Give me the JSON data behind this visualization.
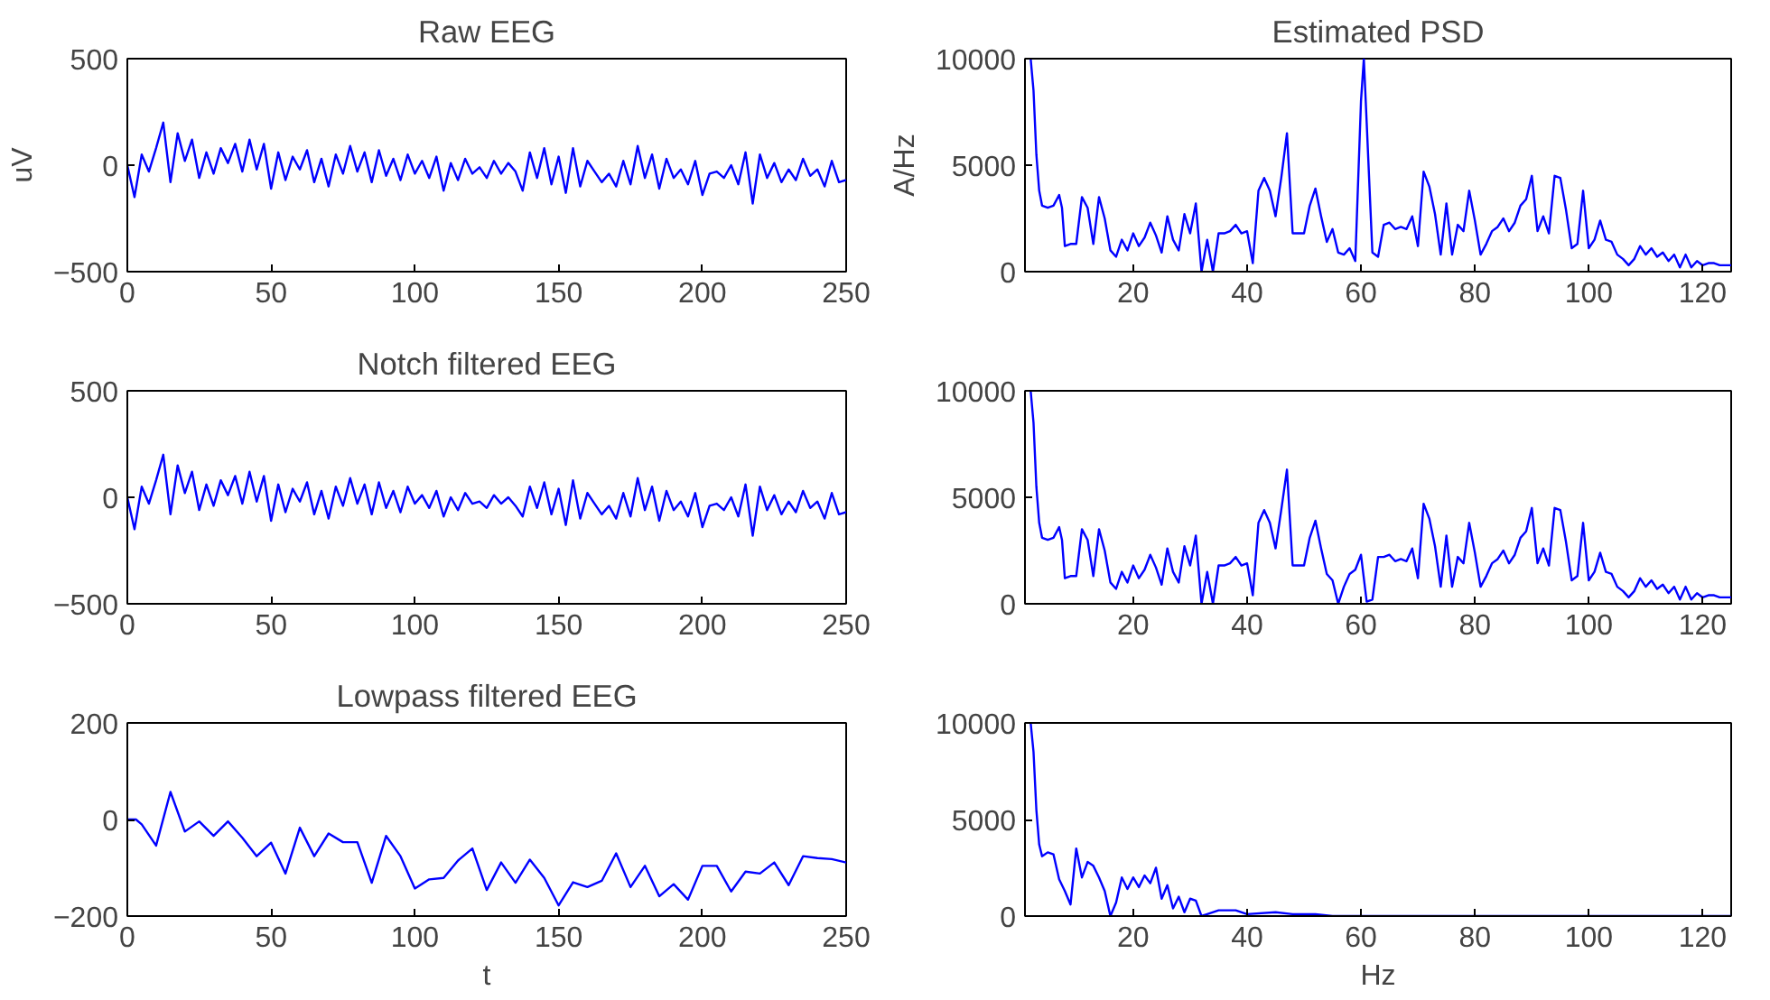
{
  "chart_data": [
    {
      "type": "line",
      "title": "Raw EEG",
      "ylabel": "uV",
      "xlim": [
        0,
        250
      ],
      "xticks": [
        0,
        50,
        100,
        150,
        200,
        250
      ],
      "ylim": [
        -500,
        500
      ],
      "yticks": [
        -500,
        0,
        500
      ],
      "grid": false,
      "series": [
        {
          "color": "#0000ff",
          "x": [
            0,
            2.5,
            5,
            7.5,
            10,
            12.5,
            15,
            17.5,
            20,
            22.5,
            25,
            27.5,
            30,
            32.5,
            35,
            37.5,
            40,
            42.5,
            45,
            47.5,
            50,
            52.5,
            55,
            57.5,
            60,
            62.5,
            65,
            67.5,
            70,
            72.5,
            75,
            77.5,
            80,
            82.5,
            85,
            87.5,
            90,
            92.5,
            95,
            97.5,
            100,
            102.5,
            105,
            107.5,
            110,
            112.5,
            115,
            117.5,
            120,
            122.5,
            125,
            127.5,
            130,
            132.5,
            135,
            137.5,
            140,
            142.5,
            145,
            147.5,
            150,
            152.5,
            155,
            157.5,
            160,
            162.5,
            165,
            167.5,
            170,
            172.5,
            175,
            177.5,
            180,
            182.5,
            185,
            187.5,
            190,
            192.5,
            195,
            197.5,
            200,
            202.5,
            205,
            207.5,
            210,
            212.5,
            215,
            217.5,
            220,
            222.5,
            225,
            227.5,
            230,
            232.5,
            235,
            237.5,
            240,
            242.5,
            245,
            247.5,
            250
          ],
          "values": [
            0,
            -150,
            50,
            -30,
            80,
            200,
            -80,
            150,
            20,
            120,
            -60,
            60,
            -40,
            80,
            10,
            100,
            -30,
            120,
            -20,
            100,
            -110,
            60,
            -70,
            40,
            -20,
            70,
            -80,
            30,
            -100,
            50,
            -40,
            90,
            -30,
            60,
            -80,
            70,
            -50,
            30,
            -70,
            50,
            -40,
            20,
            -60,
            40,
            -120,
            10,
            -70,
            30,
            -40,
            -10,
            -60,
            20,
            -40,
            10,
            -30,
            -120,
            60,
            -60,
            80,
            -90,
            40,
            -130,
            80,
            -100,
            20,
            -30,
            -80,
            -40,
            -100,
            20,
            -90,
            90,
            -60,
            50,
            -110,
            30,
            -60,
            -20,
            -90,
            20,
            -140,
            -40,
            -30,
            -60,
            0,
            -90,
            60,
            -180,
            50,
            -60,
            10,
            -80,
            -20,
            -70,
            30,
            -50,
            -20,
            -100,
            20,
            -80,
            -70
          ]
        }
      ]
    },
    {
      "type": "line",
      "title": "Estimated PSD",
      "ylabel": "A/Hz",
      "xlim": [
        1,
        125
      ],
      "xticks": [
        20,
        40,
        60,
        80,
        100,
        120
      ],
      "ylim": [
        0,
        10000
      ],
      "yticks": [
        0,
        5000,
        10000
      ],
      "grid": false,
      "series": [
        {
          "color": "#0000ff",
          "x": [
            2,
            2.5,
            3,
            3.5,
            4,
            5,
            6,
            7,
            7.5,
            8,
            9,
            10,
            11,
            12,
            13,
            14,
            15,
            16,
            17,
            18,
            19,
            20,
            21,
            22,
            23,
            24,
            25,
            26,
            27,
            28,
            29,
            30,
            31,
            32,
            33,
            34,
            35,
            36,
            37,
            38,
            39,
            40,
            41,
            42,
            43,
            44,
            45,
            46,
            47,
            48,
            49,
            50,
            51,
            52,
            53,
            54,
            55,
            56,
            57,
            58,
            59,
            60,
            60.5,
            61,
            62,
            63,
            64,
            65,
            66,
            67,
            68,
            69,
            70,
            71,
            72,
            73,
            74,
            75,
            76,
            77,
            78,
            79,
            80,
            81,
            82,
            83,
            84,
            85,
            86,
            87,
            88,
            89,
            90,
            91,
            92,
            93,
            94,
            95,
            96,
            97,
            98,
            99,
            100,
            101,
            102,
            103,
            104,
            105,
            106,
            107,
            108,
            109,
            110,
            111,
            112,
            113,
            114,
            115,
            116,
            117,
            118,
            119,
            120,
            121,
            122,
            123,
            125
          ],
          "values": [
            10000,
            8500,
            5500,
            3800,
            3100,
            3000,
            3100,
            3600,
            3000,
            1200,
            1300,
            1300,
            3500,
            3000,
            1300,
            3500,
            2500,
            1000,
            700,
            1500,
            1000,
            1800,
            1200,
            1600,
            2300,
            1700,
            900,
            2600,
            1500,
            1000,
            2700,
            1800,
            3200,
            0,
            1500,
            0,
            1800,
            1800,
            1900,
            2200,
            1800,
            1900,
            400,
            3800,
            4400,
            3800,
            2600,
            4400,
            6500,
            1800,
            1800,
            1800,
            3100,
            3900,
            2600,
            1400,
            2000,
            900,
            800,
            1100,
            500,
            8000,
            10000,
            7000,
            900,
            700,
            2200,
            2300,
            2000,
            2100,
            2000,
            2600,
            1200,
            4700,
            4000,
            2700,
            800,
            3200,
            800,
            2200,
            1900,
            3800,
            2400,
            800,
            1300,
            1900,
            2100,
            2500,
            1900,
            2300,
            3100,
            3400,
            4500,
            1900,
            2600,
            1800,
            4500,
            4400,
            2900,
            1100,
            1300,
            3800,
            1100,
            1500,
            2400,
            1500,
            1400,
            800,
            600,
            300,
            600,
            1200,
            800,
            1100,
            700,
            900,
            500,
            800,
            200,
            800,
            200,
            500,
            300,
            400,
            400,
            300,
            300
          ]
        }
      ]
    },
    {
      "type": "line",
      "title": "Notch filtered EEG",
      "xlim": [
        0,
        250
      ],
      "xticks": [
        0,
        50,
        100,
        150,
        200,
        250
      ],
      "ylim": [
        -500,
        500
      ],
      "yticks": [
        -500,
        0,
        500
      ],
      "grid": false,
      "series": [
        {
          "color": "#0000ff",
          "x": [
            0,
            2.5,
            5,
            7.5,
            10,
            12.5,
            15,
            17.5,
            20,
            22.5,
            25,
            27.5,
            30,
            32.5,
            35,
            37.5,
            40,
            42.5,
            45,
            47.5,
            50,
            52.5,
            55,
            57.5,
            60,
            62.5,
            65,
            67.5,
            70,
            72.5,
            75,
            77.5,
            80,
            82.5,
            85,
            87.5,
            90,
            92.5,
            95,
            97.5,
            100,
            102.5,
            105,
            107.5,
            110,
            112.5,
            115,
            117.5,
            120,
            122.5,
            125,
            127.5,
            130,
            132.5,
            135,
            137.5,
            140,
            142.5,
            145,
            147.5,
            150,
            152.5,
            155,
            157.5,
            160,
            162.5,
            165,
            167.5,
            170,
            172.5,
            175,
            177.5,
            180,
            182.5,
            185,
            187.5,
            190,
            192.5,
            195,
            197.5,
            200,
            202.5,
            205,
            207.5,
            210,
            212.5,
            215,
            217.5,
            220,
            222.5,
            225,
            227.5,
            230,
            232.5,
            235,
            237.5,
            240,
            242.5,
            245,
            247.5,
            250
          ],
          "values": [
            0,
            -150,
            50,
            -30,
            80,
            200,
            -80,
            150,
            20,
            120,
            -60,
            60,
            -40,
            80,
            10,
            100,
            -30,
            120,
            -20,
            100,
            -110,
            60,
            -70,
            40,
            -20,
            70,
            -80,
            30,
            -100,
            50,
            -40,
            90,
            -30,
            60,
            -80,
            70,
            -50,
            30,
            -70,
            50,
            -30,
            10,
            -50,
            30,
            -90,
            0,
            -60,
            20,
            -30,
            -20,
            -50,
            10,
            -30,
            0,
            -40,
            -90,
            50,
            -50,
            70,
            -80,
            40,
            -130,
            80,
            -100,
            20,
            -30,
            -80,
            -40,
            -100,
            20,
            -90,
            90,
            -60,
            50,
            -110,
            30,
            -60,
            -20,
            -90,
            20,
            -140,
            -40,
            -30,
            -60,
            0,
            -90,
            60,
            -180,
            50,
            -60,
            10,
            -80,
            -20,
            -70,
            30,
            -50,
            -20,
            -100,
            20,
            -80,
            -70
          ]
        }
      ]
    },
    {
      "type": "line",
      "xlim": [
        1,
        125
      ],
      "xticks": [
        20,
        40,
        60,
        80,
        100,
        120
      ],
      "ylim": [
        0,
        10000
      ],
      "yticks": [
        0,
        5000,
        10000
      ],
      "grid": false,
      "series": [
        {
          "color": "#0000ff",
          "x": [
            2,
            2.5,
            3,
            3.5,
            4,
            5,
            6,
            7,
            7.5,
            8,
            9,
            10,
            11,
            12,
            13,
            14,
            15,
            16,
            17,
            18,
            19,
            20,
            21,
            22,
            23,
            24,
            25,
            26,
            27,
            28,
            29,
            30,
            31,
            32,
            33,
            34,
            35,
            36,
            37,
            38,
            39,
            40,
            41,
            42,
            43,
            44,
            45,
            46,
            47,
            48,
            49,
            50,
            51,
            52,
            53,
            54,
            55,
            56,
            57,
            58,
            59,
            60,
            61,
            62,
            63,
            64,
            65,
            66,
            67,
            68,
            69,
            70,
            71,
            72,
            73,
            74,
            75,
            76,
            77,
            78,
            79,
            80,
            81,
            82,
            83,
            84,
            85,
            86,
            87,
            88,
            89,
            90,
            91,
            92,
            93,
            94,
            95,
            96,
            97,
            98,
            99,
            100,
            101,
            102,
            103,
            104,
            105,
            106,
            107,
            108,
            109,
            110,
            111,
            112,
            113,
            114,
            115,
            116,
            117,
            118,
            119,
            120,
            121,
            122,
            123,
            125
          ],
          "values": [
            10000,
            8500,
            5500,
            3800,
            3100,
            3000,
            3100,
            3600,
            3000,
            1200,
            1300,
            1300,
            3500,
            3000,
            1300,
            3500,
            2500,
            1000,
            700,
            1500,
            1000,
            1800,
            1200,
            1600,
            2300,
            1700,
            900,
            2600,
            1500,
            1000,
            2700,
            1800,
            3200,
            0,
            1500,
            0,
            1800,
            1800,
            1900,
            2200,
            1800,
            1900,
            400,
            3800,
            4400,
            3800,
            2600,
            4400,
            6300,
            1800,
            1800,
            1800,
            3100,
            3900,
            2600,
            1400,
            1100,
            0,
            800,
            1400,
            1600,
            2300,
            100,
            200,
            2200,
            2200,
            2300,
            2000,
            2100,
            2000,
            2600,
            1200,
            4700,
            4000,
            2700,
            800,
            3200,
            800,
            2200,
            1900,
            3800,
            2400,
            800,
            1300,
            1900,
            2100,
            2500,
            1900,
            2300,
            3100,
            3400,
            4500,
            1900,
            2600,
            1800,
            4500,
            4400,
            2900,
            1100,
            1300,
            3800,
            1100,
            1500,
            2400,
            1500,
            1400,
            800,
            600,
            300,
            600,
            1200,
            800,
            1100,
            700,
            900,
            500,
            800,
            200,
            800,
            200,
            500,
            300,
            400,
            400,
            300,
            300
          ]
        }
      ]
    },
    {
      "type": "line",
      "title": "Lowpass filtered EEG",
      "xlabel": "t",
      "xlim": [
        0,
        250
      ],
      "xticks": [
        0,
        50,
        100,
        150,
        200,
        250
      ],
      "ylim": [
        -200,
        200
      ],
      "yticks": [
        -200,
        0,
        200
      ],
      "grid": false,
      "series": [
        {
          "color": "#0000ff",
          "x": [
            0,
            3,
            5,
            10,
            15,
            20,
            25,
            30,
            35,
            40,
            45,
            50,
            55,
            60,
            65,
            70,
            75,
            80,
            85,
            90,
            95,
            100,
            105,
            110,
            115,
            120,
            125,
            130,
            135,
            140,
            145,
            150,
            155,
            160,
            165,
            170,
            175,
            180,
            185,
            190,
            195,
            200,
            205,
            210,
            215,
            220,
            225,
            230,
            235,
            240,
            245,
            250
          ],
          "values": [
            0,
            0,
            -10,
            -54,
            57,
            -25,
            -4,
            -34,
            -4,
            -38,
            -76,
            -48,
            -112,
            -17,
            -76,
            -29,
            -47,
            -47,
            -131,
            -34,
            -76,
            -143,
            -124,
            -121,
            -85,
            -60,
            -146,
            -89,
            -131,
            -83,
            -121,
            -178,
            -130,
            -140,
            -127,
            -70,
            -140,
            -96,
            -159,
            -134,
            -166,
            -96,
            -96,
            -149,
            -108,
            -112,
            -89,
            -136,
            -76,
            -80,
            -82,
            -89
          ]
        }
      ]
    },
    {
      "type": "line",
      "xlabel": "Hz",
      "xlim": [
        1,
        125
      ],
      "xticks": [
        20,
        40,
        60,
        80,
        100,
        120
      ],
      "ylim": [
        0,
        10000
      ],
      "yticks": [
        0,
        5000,
        10000
      ],
      "grid": false,
      "series": [
        {
          "color": "#0000ff",
          "x": [
            2,
            2.5,
            3,
            3.5,
            4,
            5,
            6,
            7,
            8,
            9,
            10,
            11,
            12,
            13,
            14,
            15,
            16,
            17,
            18,
            19,
            20,
            21,
            22,
            23,
            24,
            25,
            26,
            27,
            28,
            29,
            30,
            31,
            32,
            33,
            35,
            38,
            40,
            45,
            48,
            50,
            52,
            55,
            125
          ],
          "values": [
            10000,
            8500,
            5500,
            3700,
            3100,
            3300,
            3200,
            1900,
            1300,
            600,
            3500,
            2000,
            2800,
            2600,
            2000,
            1300,
            0,
            700,
            2000,
            1400,
            2000,
            1500,
            2100,
            1700,
            2500,
            900,
            1600,
            400,
            1000,
            200,
            900,
            800,
            0,
            100,
            300,
            300,
            100,
            200,
            100,
            100,
            100,
            0,
            0
          ]
        }
      ]
    }
  ]
}
